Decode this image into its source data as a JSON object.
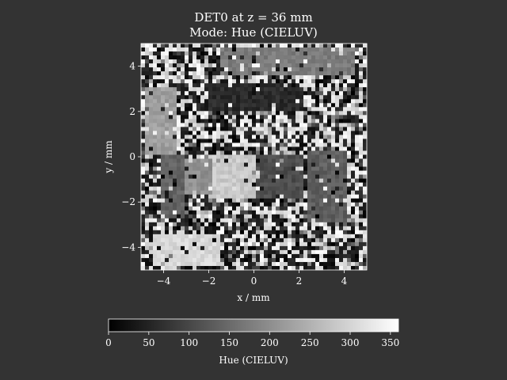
{
  "chart_data": {
    "type": "heatmap",
    "title": "DET0 at z = 36 mm",
    "subtitle": "Mode: Hue (CIELUV)",
    "xlabel": "x / mm",
    "ylabel": "y / mm",
    "xlim": [
      -5,
      5
    ],
    "ylim": [
      -5,
      5
    ],
    "x_ticks": [
      -4,
      -2,
      0,
      2,
      4
    ],
    "x_tick_labels": [
      "−4",
      "−2",
      "0",
      "2",
      "4"
    ],
    "y_ticks": [
      4,
      2,
      0,
      -2,
      -4
    ],
    "y_tick_labels": [
      "4",
      "2",
      "0",
      "−2",
      "−4"
    ],
    "colormap": "gray",
    "grid": false,
    "colorbar": {
      "label": "Hue (CIELUV)",
      "orientation": "horizontal",
      "placement": "bottom",
      "range": [
        0,
        360
      ],
      "ticks": [
        0,
        50,
        100,
        150,
        200,
        250,
        300,
        350
      ],
      "tick_labels": [
        "0",
        "50",
        "100",
        "150",
        "200",
        "250",
        "300",
        "350"
      ]
    }
  },
  "colors": {
    "background": "#333333",
    "foreground": "#ffffff"
  }
}
